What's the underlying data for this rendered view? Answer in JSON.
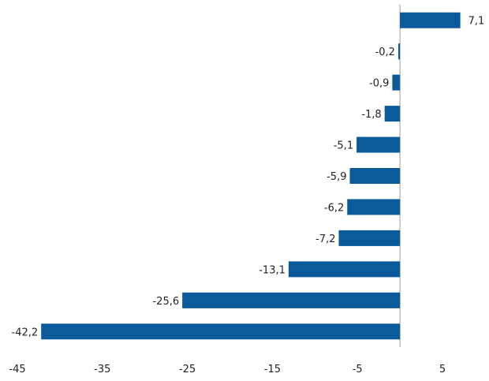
{
  "chart_data": {
    "type": "bar",
    "orientation": "horizontal",
    "values": [
      7.1,
      -0.2,
      -0.9,
      -1.8,
      -5.1,
      -5.9,
      -6.2,
      -7.2,
      -13.1,
      -25.6,
      -42.2
    ],
    "data_labels": [
      "7,1",
      "-0,2",
      "-0,9",
      "-1,8",
      "-5,1",
      "-5,9",
      "-6,2",
      "-7,2",
      "-13,1",
      "-25,6",
      "-42,2"
    ],
    "x_ticks": [
      -45,
      -35,
      -25,
      -15,
      -5,
      5
    ],
    "x_tick_labels": [
      "-45",
      "-35",
      "-25",
      "-15",
      "-5",
      "5"
    ],
    "xlim": [
      -45,
      5
    ],
    "title": "",
    "xlabel": "",
    "ylabel": "",
    "bar_color": "#0a5a9c",
    "legend": "none",
    "grid": false
  }
}
